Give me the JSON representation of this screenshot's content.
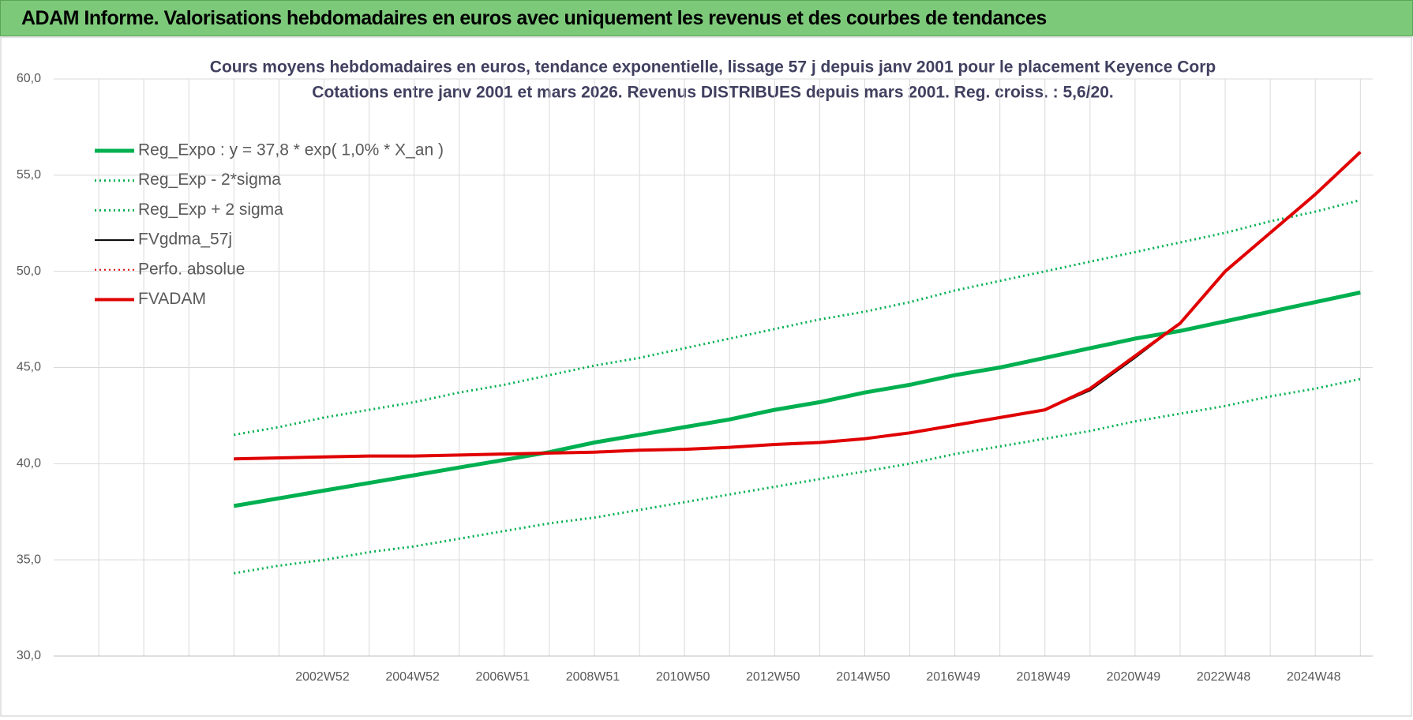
{
  "header": {
    "title": "ADAM Informe. Valorisations hebdomadaires en euros avec uniquement les revenus et des courbes de tendances"
  },
  "chart_data": {
    "type": "line",
    "title": "Cours moyens hebdomadaires en euros, tendance exponentielle, lissage 57 j depuis janv 2001  pour le placement Keyence Corp",
    "subtitle": "Cotations entre janv 2001 et mars 2026. Revenus DISTRIBUES depuis mars 2001. Reg. croiss. : 5,6/20.",
    "categories": [
      null,
      null,
      null,
      null,
      null,
      null,
      "2002W52",
      null,
      "2004W52",
      null,
      "2006W51",
      null,
      "2008W51",
      null,
      "2010W50",
      null,
      "2012W50",
      null,
      "2014W50",
      null,
      "2016W49",
      null,
      "2018W49",
      null,
      "2020W49",
      null,
      "2022W48",
      null,
      "2024W48",
      null
    ],
    "ylim": [
      30,
      60
    ],
    "yticks": [
      {
        "value": 30,
        "label": "30,0"
      },
      {
        "value": 35,
        "label": "35,0"
      },
      {
        "value": 40,
        "label": "40,0"
      },
      {
        "value": 45,
        "label": "45,0"
      },
      {
        "value": 50,
        "label": "50,0"
      },
      {
        "value": 55,
        "label": "55,0"
      },
      {
        "value": 60,
        "label": "60,0"
      }
    ],
    "grid": true,
    "legend": "top-left",
    "series": [
      {
        "name": "Reg_Expo : y = 37,8 * exp( 1,0% *  X_an )",
        "color": "#00b050",
        "width": 5,
        "dash": "solid",
        "values": [
          null,
          null,
          null,
          null,
          37.8,
          38.2,
          38.6,
          39.0,
          39.4,
          39.8,
          40.2,
          40.6,
          41.1,
          41.5,
          41.9,
          42.3,
          42.8,
          43.2,
          43.7,
          44.1,
          44.6,
          45.0,
          45.5,
          46.0,
          46.5,
          46.9,
          47.4,
          47.9,
          48.4,
          48.9
        ]
      },
      {
        "name": "Reg_Exp - 2*sigma",
        "color": "#00b050",
        "width": 3,
        "dash": "dotted",
        "values": [
          null,
          null,
          null,
          null,
          34.3,
          34.7,
          35.0,
          35.4,
          35.7,
          36.1,
          36.5,
          36.9,
          37.2,
          37.6,
          38.0,
          38.4,
          38.8,
          39.2,
          39.6,
          40.0,
          40.5,
          40.9,
          41.3,
          41.7,
          42.2,
          42.6,
          43.0,
          43.5,
          43.9,
          44.4
        ]
      },
      {
        "name": "Reg_Exp + 2 sigma",
        "color": "#00b050",
        "width": 3,
        "dash": "dotted",
        "values": [
          null,
          null,
          null,
          null,
          41.5,
          41.9,
          42.4,
          42.8,
          43.2,
          43.7,
          44.1,
          44.6,
          45.1,
          45.5,
          46.0,
          46.5,
          47.0,
          47.5,
          47.9,
          48.4,
          49.0,
          49.5,
          50.0,
          50.5,
          51.0,
          51.5,
          52.0,
          52.6,
          53.1,
          53.7
        ]
      },
      {
        "name": "FVgdma_57j",
        "color": "#000000",
        "width": 2,
        "dash": "solid",
        "values": [
          null,
          null,
          null,
          null,
          40.25,
          40.3,
          40.35,
          40.4,
          40.4,
          40.45,
          40.5,
          40.55,
          40.6,
          40.7,
          40.75,
          40.85,
          41.0,
          41.1,
          41.3,
          41.6,
          42.0,
          42.4,
          42.8,
          43.8,
          45.5,
          47.3,
          50.0,
          52.0,
          54.0,
          56.2
        ]
      },
      {
        "name": "Perfo. absolue",
        "color": "#e00000",
        "width": 2,
        "dash": "dotted",
        "values": [
          null,
          null,
          null,
          null,
          null,
          null,
          null,
          null,
          null,
          null,
          null,
          null,
          null,
          null,
          null,
          null,
          null,
          null,
          null,
          null,
          null,
          null,
          null,
          null,
          null,
          null,
          null,
          null,
          null,
          null
        ]
      },
      {
        "name": "FVADAM",
        "color": "#e00000",
        "width": 4,
        "dash": "solid",
        "values": [
          null,
          null,
          null,
          null,
          40.25,
          40.3,
          40.35,
          40.4,
          40.4,
          40.45,
          40.5,
          40.55,
          40.6,
          40.7,
          40.75,
          40.85,
          41.0,
          41.1,
          41.3,
          41.6,
          42.0,
          42.4,
          42.8,
          43.9,
          45.6,
          47.3,
          50.0,
          52.0,
          54.0,
          56.2
        ]
      }
    ]
  }
}
